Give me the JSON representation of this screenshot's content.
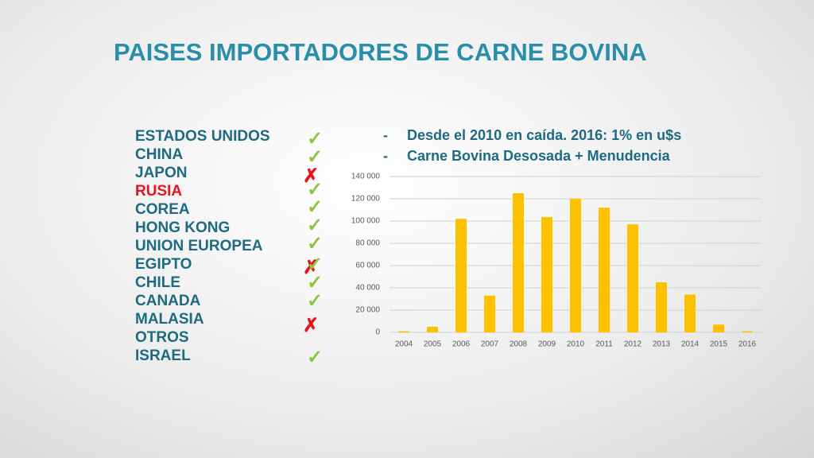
{
  "title": "PAISES IMPORTADORES DE CARNE BOVINA",
  "countries": [
    {
      "name": "ESTADOS UNIDOS",
      "marks": [
        "✓"
      ]
    },
    {
      "name": "CHINA",
      "marks": [
        "✓"
      ]
    },
    {
      "name": "JAPON",
      "marks": [
        "✗"
      ]
    },
    {
      "name": "RUSIA",
      "color": "#e8141c",
      "marks": [
        "✓"
      ]
    },
    {
      "name": "COREA",
      "marks": [
        "✓"
      ]
    },
    {
      "name": "HONG KONG",
      "marks": [
        "✓"
      ]
    },
    {
      "name": "UNION EUROPEA",
      "marks": [
        "✓"
      ]
    },
    {
      "name": "EGIPTO",
      "marks": [
        "✗",
        "✓"
      ]
    },
    {
      "name": "CHILE",
      "marks": [
        "✓"
      ]
    },
    {
      "name": "CANADA",
      "marks": [
        "✓"
      ]
    },
    {
      "name": "MALASIA",
      "marks": [
        "✗"
      ]
    },
    {
      "name": "OTROS",
      "marks": []
    },
    {
      "name": "ISRAEL",
      "marks": [
        "✓"
      ]
    }
  ],
  "bullets": [
    "Desde el 2010 en caída. 2016: 1% en u$s",
    "Carne Bovina Desosada + Menudencia"
  ],
  "chart_data": {
    "type": "bar",
    "categories": [
      "2004",
      "2005",
      "2006",
      "2007",
      "2008",
      "2009",
      "2010",
      "2011",
      "2012",
      "2013",
      "2014",
      "2015",
      "2016"
    ],
    "values": [
      1000,
      5000,
      102000,
      33000,
      125000,
      103500,
      120000,
      112000,
      97000,
      45000,
      34000,
      7000,
      1000
    ],
    "color": "#ffc000",
    "ylim": [
      0,
      140000
    ],
    "yticks": [
      0,
      {
        "value": 20000,
        "label": "20 000"
      },
      {
        "value": 40000,
        "label": "40 000"
      },
      {
        "value": 60000,
        "label": "60 000"
      },
      {
        "value": 80000,
        "label": "80 000"
      },
      {
        "value": 100000,
        "label": "100 000"
      },
      {
        "value": 120000,
        "label": "120 000"
      },
      {
        "value": 140000,
        "label": "140 000"
      }
    ],
    "grid": true
  }
}
